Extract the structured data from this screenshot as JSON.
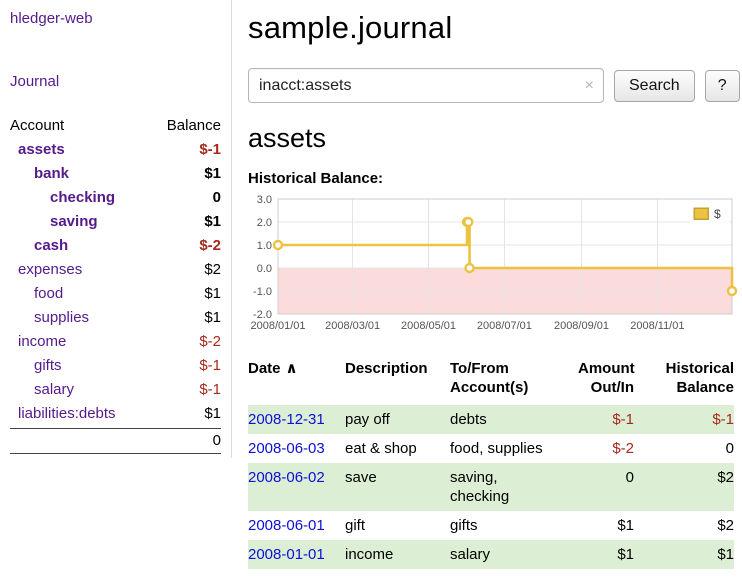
{
  "app": {
    "title": "hledger-web",
    "nav_journal": "Journal"
  },
  "colors": {
    "link_purple": "#551a8b",
    "link_blue": "#0d10d6",
    "negative_red": "#a8281c",
    "row_highlight_green": "#dcefd5",
    "chart_line_gold": "#edc240",
    "chart_negative_pink": "#fbdbdb"
  },
  "sidebar": {
    "headers": {
      "account": "Account",
      "balance": "Balance"
    },
    "accounts": [
      {
        "name": "assets",
        "indent": 1,
        "bold": true,
        "balance": "$-1",
        "negative": true
      },
      {
        "name": "bank",
        "indent": 2,
        "bold": true,
        "balance": "$1",
        "negative": false
      },
      {
        "name": "checking",
        "indent": 3,
        "bold": true,
        "balance": "0",
        "negative": false
      },
      {
        "name": "saving",
        "indent": 3,
        "bold": true,
        "balance": "$1",
        "negative": false
      },
      {
        "name": "cash",
        "indent": 2,
        "bold": true,
        "balance": "$-2",
        "negative": true
      },
      {
        "name": "expenses",
        "indent": 1,
        "bold": false,
        "balance": "$2",
        "negative": false
      },
      {
        "name": "food",
        "indent": 2,
        "bold": false,
        "balance": "$1",
        "negative": false
      },
      {
        "name": "supplies",
        "indent": 2,
        "bold": false,
        "balance": "$1",
        "negative": false
      },
      {
        "name": "income",
        "indent": 1,
        "bold": false,
        "balance": "$-2",
        "negative": true
      },
      {
        "name": "gifts",
        "indent": 2,
        "bold": false,
        "balance": "$-1",
        "negative": true
      },
      {
        "name": "salary",
        "indent": 2,
        "bold": false,
        "balance": "$-1",
        "negative": true
      },
      {
        "name": "liabilities:debts",
        "indent": 1,
        "bold": false,
        "balance": "$1",
        "negative": false
      }
    ],
    "total": "0"
  },
  "main": {
    "title": "sample.journal",
    "search": {
      "value": "inacct:assets",
      "clear_icon": "×",
      "button": "Search",
      "help_button": "?"
    },
    "account_heading": "assets",
    "chart_label": "Historical Balance:"
  },
  "chart_data": {
    "type": "line",
    "title": "Historical Balance",
    "series": [
      {
        "name": "$",
        "color": "#edc240",
        "step": true,
        "points": [
          {
            "x": "2008-01-01",
            "y": 1
          },
          {
            "x": "2008-06-01",
            "y": 2
          },
          {
            "x": "2008-06-02",
            "y": 2
          },
          {
            "x": "2008-06-03",
            "y": 0
          },
          {
            "x": "2008-12-31",
            "y": -1
          }
        ]
      }
    ],
    "xlim": [
      "2008-01-01",
      "2008-12-31"
    ],
    "ylim": [
      -2,
      3
    ],
    "y_ticks": [
      "3.0",
      "2.0",
      "1.0",
      "0.0",
      "-1.0",
      "-2.0"
    ],
    "x_ticks": [
      "2008/01/01",
      "2008/03/01",
      "2008/05/01",
      "2008/07/01",
      "2008/09/01",
      "2008/11/01"
    ],
    "grid": true,
    "legend_position": "top-right",
    "negative_region_color": "#fbdbdb",
    "grid_color": "#e4e4e4",
    "border_color": "#cccccc",
    "tick_label_color": "#545454"
  },
  "table": {
    "columns": [
      {
        "label": "Date",
        "align": "left",
        "sortable": true,
        "sort_icon": "∧"
      },
      {
        "label": "Description",
        "align": "left",
        "sortable": false
      },
      {
        "label": "To/From\nAccount(s)",
        "align": "left",
        "sortable": false
      },
      {
        "label": "Amount\nOut/In",
        "align": "right",
        "sortable": false
      },
      {
        "label": "Historical\nBalance",
        "align": "right",
        "sortable": false
      }
    ],
    "rows": [
      {
        "date": "2008-12-31",
        "description": "pay off",
        "accounts": "debts",
        "amount": "$-1",
        "amount_negative": true,
        "balance": "$-1",
        "balance_negative": true
      },
      {
        "date": "2008-06-03",
        "description": "eat & shop",
        "accounts": "food, supplies",
        "amount": "$-2",
        "amount_negative": true,
        "balance": "0",
        "balance_negative": false
      },
      {
        "date": "2008-06-02",
        "description": "save",
        "accounts": "saving,\nchecking",
        "amount": "0",
        "amount_negative": false,
        "balance": "$2",
        "balance_negative": false
      },
      {
        "date": "2008-06-01",
        "description": "gift",
        "accounts": "gifts",
        "amount": "$1",
        "amount_negative": false,
        "balance": "$2",
        "balance_negative": false
      },
      {
        "date": "2008-01-01",
        "description": "income",
        "accounts": "salary",
        "amount": "$1",
        "amount_negative": false,
        "balance": "$1",
        "balance_negative": false
      }
    ]
  }
}
